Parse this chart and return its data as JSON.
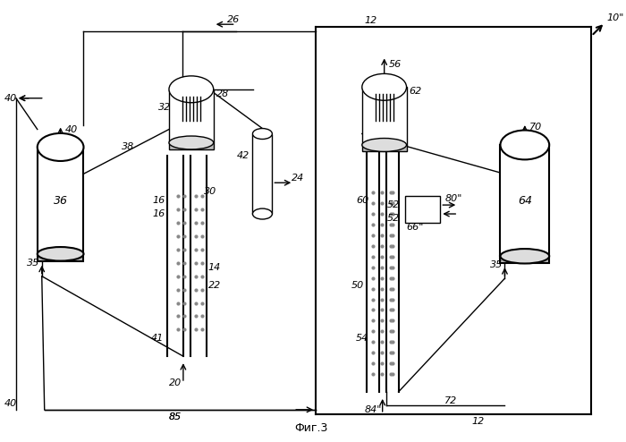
{
  "bg_color": "#ffffff",
  "line_color": "#000000",
  "gray_light": "#cccccc",
  "gray_med": "#999999",
  "title": "Фиг.3",
  "labels": {
    "10": "10\"",
    "12": "12",
    "14": "14",
    "16a": "16",
    "16b": "16",
    "20": "20",
    "22": "22",
    "24": "24",
    "26": "26",
    "28": "28",
    "30": "30",
    "32": "32",
    "35a": "35",
    "35b": "35",
    "36": "36",
    "38": "38",
    "40a": "40",
    "40b": "40",
    "41": "41",
    "42": "42",
    "50": "50",
    "52a": "52",
    "52b": "52",
    "54": "54",
    "56": "56",
    "60": "60",
    "62": "62",
    "64": "64",
    "66": "66\"",
    "70": "70",
    "72": "72",
    "80": "80\"",
    "84": "84\"",
    "85": "85"
  }
}
